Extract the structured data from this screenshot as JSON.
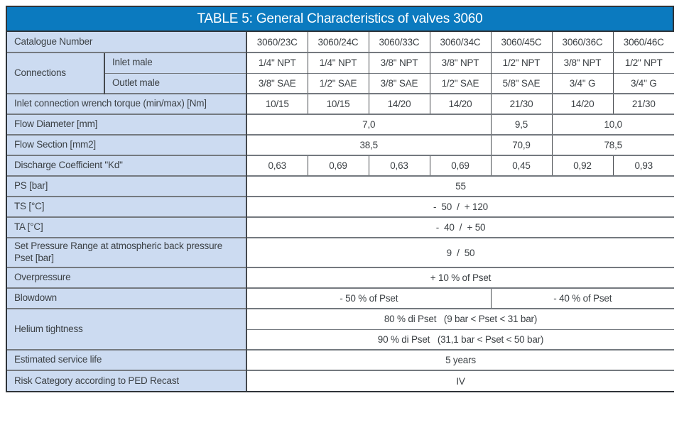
{
  "colors": {
    "title_bg": "#0b7abf",
    "title_text": "#ffffff",
    "label_bg": "#ccdbf1",
    "cell_bg": "#ffffff",
    "text": "#3c4145",
    "border_outer": "#2f3439",
    "border_row": "#74797f",
    "border_col": "#45494d"
  },
  "header": {
    "title": "TABLE 5: General Characteristics of valves 3060"
  },
  "table": {
    "catalogue": {
      "label": "Catalogue Number",
      "values": [
        "3060/23C",
        "3060/24C",
        "3060/33C",
        "3060/34C",
        "3060/45C",
        "3060/36C",
        "3060/46C"
      ]
    },
    "connections": {
      "label": "Connections",
      "inlet": {
        "label": "Inlet male",
        "values": [
          "1/4\" NPT",
          "1/4\" NPT",
          "3/8\" NPT",
          "3/8\" NPT",
          "1/2\" NPT",
          "3/8\" NPT",
          "1/2\" NPT"
        ]
      },
      "outlet": {
        "label": "Outlet male",
        "values": [
          "3/8\" SAE",
          "1/2\" SAE",
          "3/8\" SAE",
          "1/2\" SAE",
          "5/8\" SAE",
          "3/4\" G",
          "3/4\" G"
        ]
      }
    },
    "torque": {
      "label": "Inlet connection wrench torque (min/max) [Nm]",
      "values": [
        "10/15",
        "10/15",
        "14/20",
        "14/20",
        "21/30",
        "14/20",
        "21/30"
      ]
    },
    "flow_diameter": {
      "label": "Flow Diameter [mm]",
      "values": [
        "7,0",
        "9,5",
        "10,0"
      ]
    },
    "flow_section": {
      "label": "Flow Section [mm2]",
      "values": [
        "38,5",
        "70,9",
        "78,5"
      ]
    },
    "discharge": {
      "label": "Discharge Coefficient \"Kd\"",
      "values": [
        "0,63",
        "0,69",
        "0,63",
        "0,69",
        "0,45",
        "0,92",
        "0,93"
      ]
    },
    "ps": {
      "label": "PS [bar]",
      "value": "55"
    },
    "ts": {
      "label": "TS [°C]",
      "value": "-  50  /  + 120"
    },
    "ta": {
      "label": "TA [°C]",
      "value": "-  40  /  + 50"
    },
    "set_pressure": {
      "label": "Set Pressure Range at atmospheric back pressure Pset [bar]",
      "value": "9  /  50"
    },
    "overpressure": {
      "label": "Overpressure",
      "value": "+ 10 % of Pset"
    },
    "blowdown": {
      "label": "Blowdown",
      "left": "- 50 % of Pset",
      "right": "- 40 % of Pset"
    },
    "helium": {
      "label": "Helium tightness",
      "row1": "80 % di Pset   (9 bar < Pset < 31 bar)",
      "row2": "90 % di Pset   (31,1 bar < Pset < 50 bar)"
    },
    "service_life": {
      "label": "Estimated service life",
      "value": "5 years"
    },
    "risk": {
      "label": "Risk Category according to PED Recast",
      "value": "IV"
    }
  }
}
